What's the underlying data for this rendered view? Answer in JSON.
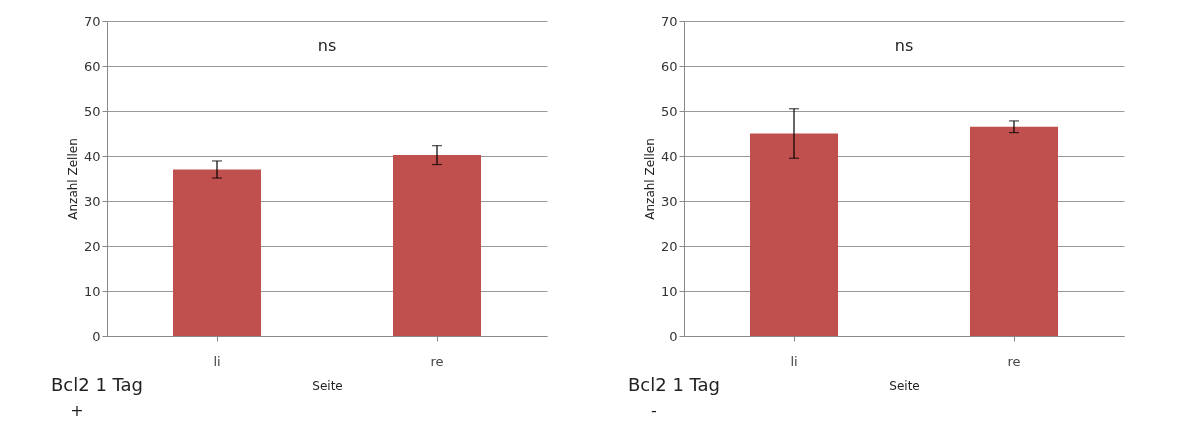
{
  "chart_data": [
    {
      "type": "bar",
      "categories": [
        "li",
        "re"
      ],
      "values": [
        37,
        40.2
      ],
      "errors": [
        1.9,
        2.1
      ],
      "color": "#c0504d",
      "xlabel": "Seite",
      "ylabel": "Anzahl Zellen",
      "ylim": [
        0,
        70
      ],
      "yticks": [
        0,
        10,
        20,
        30,
        40,
        50,
        60,
        70
      ],
      "grid": "y",
      "annotations": [
        "ns",
        "Bcl2 1 Tag",
        "+"
      ]
    },
    {
      "type": "bar",
      "categories": [
        "li",
        "re"
      ],
      "values": [
        45,
        46.5
      ],
      "errors": [
        5.5,
        1.3
      ],
      "color": "#c0504d",
      "xlabel": "Seite",
      "ylabel": "Anzahl Zellen",
      "ylim": [
        0,
        70
      ],
      "yticks": [
        0,
        10,
        20,
        30,
        40,
        50,
        60,
        70
      ],
      "grid": "y",
      "annotations": [
        "ns",
        "Bcl2 1 Tag",
        "-"
      ]
    }
  ]
}
